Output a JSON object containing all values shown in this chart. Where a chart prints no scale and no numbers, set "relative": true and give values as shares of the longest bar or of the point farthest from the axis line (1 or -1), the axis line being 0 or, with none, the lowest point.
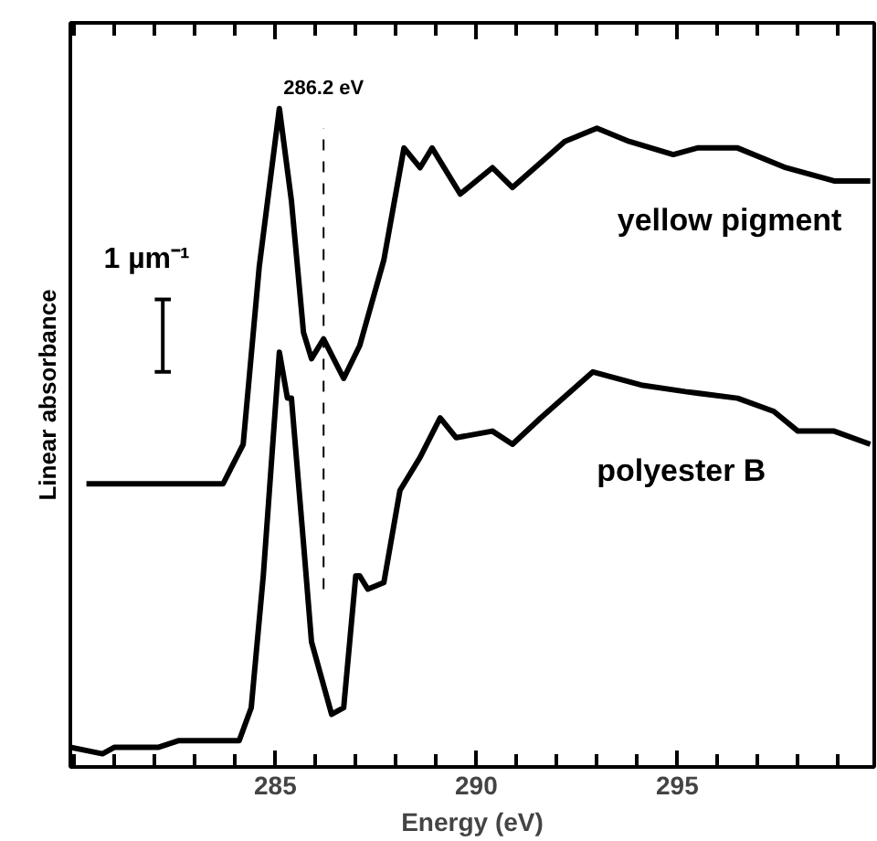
{
  "chart_data": {
    "type": "line",
    "relative": true,
    "xlabel": "Energy (eV)",
    "ylabel": "Linear absorbance",
    "xlim": [
      279.9,
      299.9
    ],
    "xticks": [
      {
        "value": 280,
        "label": null
      },
      {
        "value": 281,
        "label": null
      },
      {
        "value": 282,
        "label": null
      },
      {
        "value": 283,
        "label": null
      },
      {
        "value": 284,
        "label": null
      },
      285,
      {
        "value": 286,
        "label": null
      },
      {
        "value": 287,
        "label": null
      },
      {
        "value": 288,
        "label": null
      },
      {
        "value": 289,
        "label": null
      },
      290,
      {
        "value": 291,
        "label": null
      },
      {
        "value": 292,
        "label": null
      },
      {
        "value": 293,
        "label": null
      },
      {
        "value": 294,
        "label": null
      },
      295,
      {
        "value": 296,
        "label": null
      },
      {
        "value": 297,
        "label": null
      },
      {
        "value": 298,
        "label": null
      },
      {
        "value": 299,
        "label": null
      }
    ],
    "series": [
      {
        "name": "yellow pigment",
        "color": "#000000",
        "x": [
          280.3,
          283.7,
          284.2,
          284.6,
          285.1,
          285.4,
          285.7,
          285.9,
          286.2,
          286.7,
          287.1,
          287.7,
          288.2,
          288.6,
          288.9,
          289.6,
          290.4,
          290.9,
          292.2,
          293.0,
          293.8,
          294.9,
          295.5,
          296.5,
          297.7,
          298.9,
          299.8
        ],
        "values": [
          0.43,
          0.43,
          0.49,
          0.76,
          1.0,
          0.86,
          0.66,
          0.62,
          0.65,
          0.59,
          0.64,
          0.77,
          0.94,
          0.91,
          0.94,
          0.87,
          0.91,
          0.88,
          0.95,
          0.97,
          0.95,
          0.93,
          0.94,
          0.94,
          0.91,
          0.89,
          0.89
        ]
      },
      {
        "name": "polyester B",
        "color": "#000000",
        "x": [
          279.9,
          280.7,
          281.0,
          282.1,
          282.6,
          283.6,
          284.1,
          284.4,
          284.7,
          285.1,
          285.3,
          285.4,
          285.7,
          285.9,
          286.4,
          286.7,
          287.0,
          287.1,
          287.3,
          287.7,
          288.1,
          288.6,
          289.1,
          289.5,
          290.4,
          290.9,
          291.6,
          292.9,
          294.1,
          295.2,
          296.5,
          297.4,
          298.0,
          298.9,
          299.8
        ],
        "values": [
          0.03,
          0.02,
          0.03,
          0.03,
          0.04,
          0.04,
          0.04,
          0.09,
          0.29,
          0.63,
          0.56,
          0.56,
          0.34,
          0.19,
          0.08,
          0.09,
          0.29,
          0.29,
          0.27,
          0.28,
          0.42,
          0.47,
          0.53,
          0.5,
          0.51,
          0.49,
          0.53,
          0.6,
          0.58,
          0.57,
          0.56,
          0.54,
          0.51,
          0.51,
          0.49
        ]
      }
    ],
    "ref_lines": [
      {
        "axis": "x",
        "value": 286.2,
        "label": "286.2 eV",
        "line_style": "dashed"
      }
    ],
    "annotations": [
      "1 µm⁻¹"
    ],
    "grid": false,
    "line_style": "solid",
    "marker": "none"
  }
}
